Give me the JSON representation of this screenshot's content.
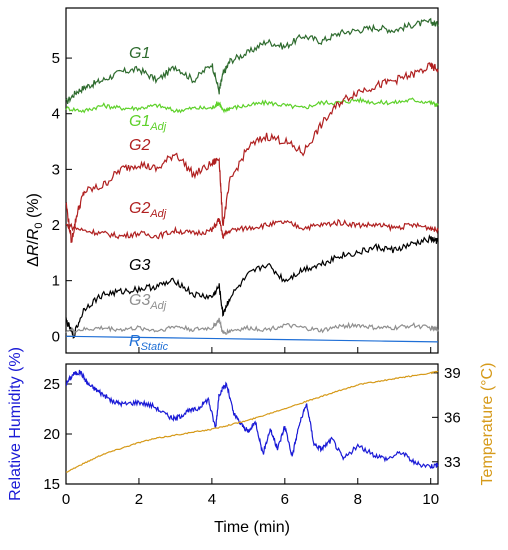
{
  "chart_data": [
    {
      "type": "line",
      "xlabel": "Time (min)",
      "ylabel_parts": {
        "delta": "Δ",
        "R": "R",
        "slash": "/",
        "R0": "R",
        "sub0": "0",
        "unit": " (%)"
      },
      "xlim": [
        0,
        10.2
      ],
      "ylim": [
        -0.3,
        5.9
      ],
      "x_ticks": [
        "0",
        "2",
        "4",
        "6",
        "8",
        "10"
      ],
      "y_ticks": [
        "0",
        "1",
        "2",
        "3",
        "4",
        "5"
      ],
      "grid": false,
      "legend": "inline labels",
      "series": [
        {
          "name": "G1",
          "label_main": "G1",
          "label_sub": "",
          "color": "#2e6b2e",
          "x": [
            0,
            0.3,
            0.6,
            1.0,
            1.5,
            2.0,
            2.5,
            3.0,
            3.5,
            4.0,
            4.2,
            4.3,
            4.5,
            5.0,
            5.5,
            6.0,
            6.5,
            7.0,
            7.5,
            8.0,
            8.5,
            9.0,
            9.5,
            10.0,
            10.2
          ],
          "y": [
            4.2,
            4.4,
            4.5,
            4.6,
            4.75,
            4.8,
            4.6,
            4.85,
            4.6,
            4.9,
            4.4,
            4.7,
            4.95,
            5.1,
            5.3,
            5.2,
            5.4,
            5.3,
            5.45,
            5.5,
            5.55,
            5.5,
            5.6,
            5.65,
            5.6
          ]
        },
        {
          "name": "G1Adj",
          "label_main": "G1",
          "label_sub": "Adj",
          "color": "#5ed12a",
          "x": [
            0,
            0.5,
            1.0,
            1.5,
            2.0,
            2.5,
            3.0,
            3.5,
            4.0,
            4.2,
            4.3,
            4.5,
            5.0,
            5.5,
            6.0,
            6.5,
            7.0,
            7.5,
            8.0,
            8.5,
            9.0,
            9.5,
            10.0,
            10.2
          ],
          "y": [
            4.1,
            4.05,
            4.15,
            4.1,
            4.1,
            4.15,
            4.05,
            4.1,
            4.1,
            4.2,
            4.05,
            4.1,
            4.15,
            4.2,
            4.15,
            4.1,
            4.2,
            4.2,
            4.25,
            4.2,
            4.2,
            4.25,
            4.2,
            4.15
          ]
        },
        {
          "name": "G2",
          "label_main": "G2",
          "label_sub": "",
          "color": "#b02020",
          "x": [
            0,
            0.15,
            0.3,
            0.5,
            1.0,
            1.5,
            2.0,
            2.5,
            3.0,
            3.5,
            4.0,
            4.2,
            4.3,
            4.5,
            5.0,
            5.5,
            6.0,
            6.5,
            7.0,
            7.5,
            8.0,
            8.5,
            9.0,
            9.5,
            10.0,
            10.2
          ],
          "y": [
            2.4,
            1.7,
            2.2,
            2.6,
            2.7,
            3.0,
            3.1,
            3.0,
            3.3,
            2.9,
            3.1,
            3.2,
            2.0,
            2.8,
            3.4,
            3.6,
            3.5,
            3.3,
            3.8,
            4.2,
            4.4,
            4.5,
            4.6,
            4.7,
            4.85,
            4.8
          ]
        },
        {
          "name": "G2Adj",
          "label_main": "G2",
          "label_sub": "Adj",
          "color": "#b02020",
          "x": [
            0,
            0.5,
            1.0,
            1.5,
            2.0,
            2.5,
            3.0,
            3.5,
            4.0,
            4.2,
            4.3,
            4.5,
            5.0,
            5.5,
            6.0,
            6.5,
            7.0,
            7.5,
            8.0,
            8.5,
            9.0,
            9.5,
            10.0,
            10.2
          ],
          "y": [
            2.0,
            1.9,
            1.85,
            1.8,
            1.85,
            1.8,
            1.9,
            1.85,
            1.9,
            2.1,
            1.8,
            1.9,
            1.95,
            2.0,
            2.05,
            1.95,
            2.0,
            2.05,
            2.0,
            2.0,
            1.95,
            2.0,
            1.95,
            1.9
          ]
        },
        {
          "name": "G3",
          "label_main": "G3",
          "label_sub": "",
          "color": "#000000",
          "x": [
            0,
            0.2,
            0.5,
            1.0,
            1.5,
            2.0,
            2.5,
            3.0,
            3.5,
            4.0,
            4.2,
            4.3,
            4.5,
            5.0,
            5.5,
            6.0,
            6.5,
            7.0,
            7.5,
            8.0,
            8.5,
            9.0,
            9.5,
            10.0,
            10.2
          ],
          "y": [
            0.3,
            0.0,
            0.5,
            0.75,
            0.8,
            0.85,
            0.9,
            1.0,
            0.75,
            0.7,
            0.9,
            0.4,
            0.7,
            1.1,
            1.3,
            1.0,
            1.2,
            1.3,
            1.45,
            1.5,
            1.6,
            1.55,
            1.65,
            1.75,
            1.7
          ]
        },
        {
          "name": "G3Adj",
          "label_main": "G3",
          "label_sub": "Adj",
          "color": "#909090",
          "x": [
            0,
            0.5,
            1.0,
            1.5,
            2.0,
            2.5,
            3.0,
            3.5,
            4.0,
            4.2,
            4.3,
            4.5,
            5.0,
            5.5,
            6.0,
            6.5,
            7.0,
            7.5,
            8.0,
            8.5,
            9.0,
            9.5,
            10.0,
            10.2
          ],
          "y": [
            0.1,
            0.12,
            0.15,
            0.12,
            0.15,
            0.1,
            0.18,
            0.12,
            0.15,
            0.3,
            0.05,
            0.1,
            0.15,
            0.12,
            0.2,
            0.15,
            0.1,
            0.18,
            0.2,
            0.15,
            0.15,
            0.2,
            0.15,
            0.12
          ]
        },
        {
          "name": "RStatic",
          "label_main": "R",
          "label_sub": "Static",
          "color": "#1f6fd6",
          "x": [
            0,
            10.2
          ],
          "y": [
            0.0,
            -0.1
          ]
        }
      ]
    },
    {
      "type": "line",
      "xlabel": "Time (min)",
      "ylabel_left": "Relative Humidity (%)",
      "ylabel_right": "Temperature (°C)",
      "xlim": [
        0,
        10.2
      ],
      "ylim_left": [
        15,
        27
      ],
      "ylim_right": [
        31.5,
        39.6
      ],
      "x_ticks": [
        "0",
        "2",
        "4",
        "6",
        "8",
        "10"
      ],
      "y_ticks_left": [
        "15",
        "20",
        "25"
      ],
      "y_ticks_right": [
        "33",
        "36",
        "39"
      ],
      "left_color": "#1a1ad6",
      "right_color": "#d69a1a",
      "series": [
        {
          "name": "Relative Humidity",
          "axis": "left",
          "color": "#1a1ad6",
          "x": [
            0,
            0.2,
            0.4,
            0.6,
            0.8,
            1.0,
            1.3,
            1.6,
            2.0,
            2.4,
            2.8,
            3.0,
            3.3,
            3.6,
            3.9,
            4.1,
            4.2,
            4.4,
            4.6,
            4.8,
            5.0,
            5.2,
            5.4,
            5.6,
            5.8,
            6.0,
            6.2,
            6.4,
            6.6,
            6.8,
            7.0,
            7.3,
            7.6,
            8.0,
            8.4,
            8.8,
            9.2,
            9.6,
            10.0,
            10.2
          ],
          "y": [
            25.0,
            26.0,
            26.2,
            25.0,
            24.5,
            24.0,
            23.2,
            23.0,
            23.2,
            22.8,
            21.8,
            21.5,
            22.2,
            22.5,
            23.5,
            20.6,
            24.0,
            25.0,
            22.0,
            21.0,
            20.2,
            21.2,
            18.0,
            20.5,
            18.5,
            20.8,
            17.8,
            21.0,
            23.0,
            19.0,
            18.5,
            19.5,
            17.5,
            18.8,
            18.0,
            17.5,
            18.2,
            17.0,
            16.8,
            16.9
          ]
        },
        {
          "name": "Temperature",
          "axis": "right",
          "color": "#d69a1a",
          "x": [
            0,
            0.5,
            1.0,
            1.5,
            2.0,
            2.5,
            3.0,
            3.5,
            4.0,
            4.5,
            5.0,
            5.5,
            6.0,
            6.5,
            7.0,
            7.5,
            8.0,
            8.5,
            9.0,
            9.5,
            10.0,
            10.2
          ],
          "y": [
            32.3,
            32.9,
            33.5,
            33.9,
            34.3,
            34.6,
            34.8,
            35.0,
            35.2,
            35.5,
            35.8,
            36.2,
            36.6,
            37.0,
            37.4,
            37.8,
            38.2,
            38.4,
            38.6,
            38.8,
            39.0,
            39.1
          ]
        }
      ]
    }
  ]
}
